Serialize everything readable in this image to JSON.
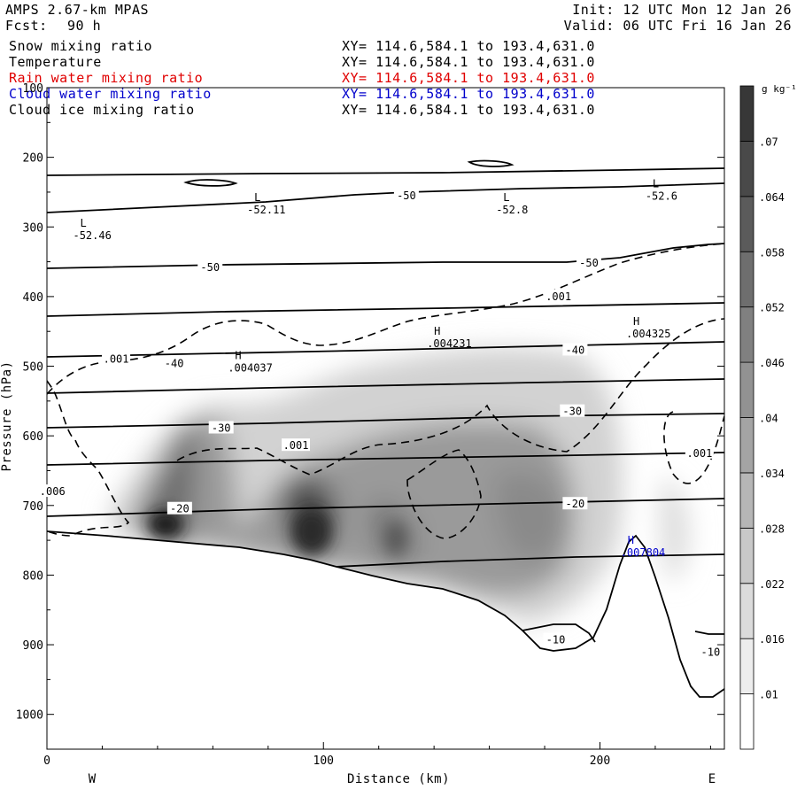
{
  "header": {
    "model": "AMPS 2.67-km MPAS",
    "forecast_label": "Fcst:",
    "forecast_hours": "90 h",
    "init": "Init: 12 UTC Mon 12 Jan 26",
    "valid": "Valid: 06 UTC Fri 16 Jan 26"
  },
  "fields": [
    {
      "name": "Snow mixing ratio",
      "range": "XY= 114.6,584.1 to 193.4,631.0",
      "color": "#000000"
    },
    {
      "name": "Temperature",
      "range": "XY= 114.6,584.1 to 193.4,631.0",
      "color": "#000000"
    },
    {
      "name": "Rain water mixing ratio",
      "range": "XY= 114.6,584.1 to 193.4,631.0",
      "color": "#e00000"
    },
    {
      "name": "Cloud water mixing ratio",
      "range": "XY= 114.6,584.1 to 193.4,631.0",
      "color": "#0000cc"
    },
    {
      "name": "Cloud ice mixing ratio",
      "range": "XY= 114.6,584.1 to 193.4,631.0",
      "color": "#000000"
    }
  ],
  "chart_data": {
    "type": "cross-section contour",
    "xlabel": "Distance (km)",
    "ylabel": "Pressure (hPa)",
    "xlim": [
      0,
      245
    ],
    "ylim": [
      1050,
      100
    ],
    "x_ticks": [
      0,
      100,
      200
    ],
    "y_ticks": [
      100,
      200,
      300,
      400,
      500,
      600,
      700,
      800,
      900,
      1000
    ],
    "left_end_label": "W",
    "right_end_label": "E",
    "colorbar": {
      "units": "g kg⁻¹",
      "levels": [
        ".01",
        ".016",
        ".022",
        ".028",
        ".034",
        ".04",
        ".046",
        ".052",
        ".058",
        ".064",
        ".07"
      ]
    },
    "temperature_contour_labels": [
      {
        "text": "-50",
        "x": 130,
        "p": 255
      },
      {
        "text": "-50",
        "x": 59,
        "p": 358
      },
      {
        "text": "-50",
        "x": 196,
        "p": 352
      },
      {
        "text": "-40",
        "x": 46,
        "p": 496
      },
      {
        "text": "-40",
        "x": 191,
        "p": 477
      },
      {
        "text": "-30",
        "x": 63,
        "p": 589
      },
      {
        "text": "-30",
        "x": 190,
        "p": 565
      },
      {
        "text": "-20",
        "x": 48,
        "p": 705
      },
      {
        "text": "-20",
        "x": 191,
        "p": 698
      },
      {
        "text": "-10",
        "x": 184,
        "p": 893
      },
      {
        "text": "-10",
        "x": 240,
        "p": 911
      }
    ],
    "extrema": [
      {
        "kind": "L",
        "value": "-52.46",
        "x": 12,
        "p": 305
      },
      {
        "kind": "L",
        "value": "-52.11",
        "x": 75,
        "p": 268
      },
      {
        "kind": "L",
        "value": "-52.8",
        "x": 165,
        "p": 268
      },
      {
        "kind": "L",
        "value": "-52.6",
        "x": 219,
        "p": 248
      },
      {
        "kind": "H",
        "value": ".004037",
        "x": 68,
        "p": 495
      },
      {
        "kind": "H",
        "value": ".004231",
        "x": 140,
        "p": 460
      },
      {
        "kind": "H",
        "value": ".004325",
        "x": 212,
        "p": 446
      },
      {
        "kind": "H",
        "value": ".007804",
        "x": 210,
        "p": 760,
        "color": "#0000cc"
      }
    ],
    "cloud_contour_labels": [
      {
        "text": ".001",
        "x": 25,
        "p": 490,
        "color": "#000000"
      },
      {
        "text": ".001",
        "x": 90,
        "p": 614,
        "color": "#000000"
      },
      {
        "text": ".001",
        "x": 185,
        "p": 400,
        "color": "#000000"
      },
      {
        "text": ".001",
        "x": 236,
        "p": 625,
        "color": "#000000"
      },
      {
        "text": ".006",
        "x": 2,
        "p": 680,
        "color": "#000000"
      }
    ]
  }
}
